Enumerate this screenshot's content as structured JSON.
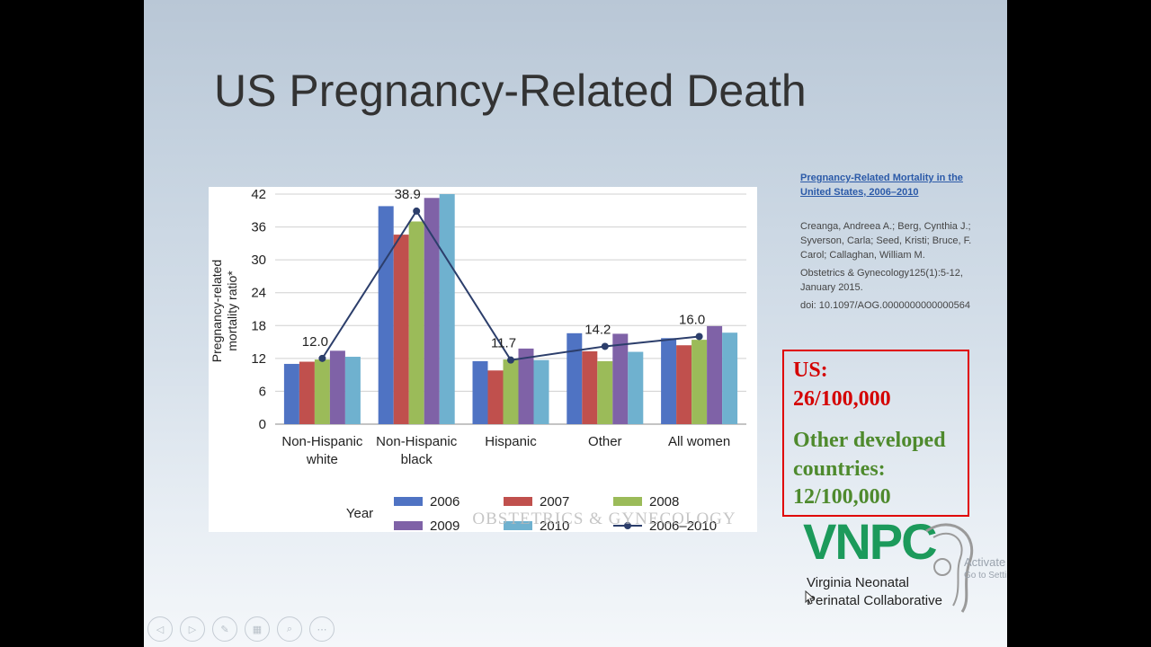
{
  "slide": {
    "title": "US Pregnancy-Related Death"
  },
  "reference": {
    "link_text": "Pregnancy-Related Mortality in the United States, 2006–2010",
    "authors": "Creanga, Andreea A.; Berg, Cynthia J.; Syverson, Carla; Seed, Kristi; Bruce, F. Carol; Callaghan, William M.",
    "journal": "Obstetrics & Gynecology125(1):5-12, January 2015.",
    "doi": "doi: 10.1097/AOG.0000000000000564"
  },
  "stats": {
    "us_label": "US:",
    "us_value": "26/100,000",
    "other_line1": "Other developed",
    "other_line2": "countries:",
    "other_value": "12/100,000",
    "us_color": "#d40000",
    "other_color": "#4e8a2d"
  },
  "logo": {
    "name": "VNPC",
    "line1": "Virginia Neonatal",
    "line2": "Perinatal Collaborative",
    "color": "#1c9a5b"
  },
  "watermark": "OBSTETRICS & GYNECOLOGY",
  "activation": {
    "line1": "Activate Windows",
    "line2": "Go to Settings to activate Windows."
  },
  "nav_buttons": [
    {
      "icon": "arrow-left-icon",
      "glyph": "◁"
    },
    {
      "icon": "arrow-right-icon",
      "glyph": "▷"
    },
    {
      "icon": "pen-icon",
      "glyph": "✎"
    },
    {
      "icon": "slides-icon",
      "glyph": "▦"
    },
    {
      "icon": "zoom-icon",
      "glyph": "⌕"
    },
    {
      "icon": "more-icon",
      "glyph": "⋯"
    }
  ],
  "chart_data": {
    "type": "bar",
    "ylabel": "Pregnancy-related mortality ratio*",
    "ylim": [
      0,
      42
    ],
    "yticks": [
      0,
      6,
      12,
      18,
      24,
      30,
      36,
      42
    ],
    "categories": [
      "Non-Hispanic white",
      "Non-Hispanic black",
      "Hispanic",
      "Other",
      "All women"
    ],
    "category_lines": [
      [
        "Non-Hispanic",
        "white"
      ],
      [
        "Non-Hispanic",
        "black"
      ],
      [
        "Hispanic"
      ],
      [
        "Other"
      ],
      [
        "All women"
      ]
    ],
    "legend_title": "Year",
    "grid": true,
    "series": [
      {
        "name": "2006",
        "color": "#4f73c3",
        "values": [
          11.0,
          39.8,
          11.5,
          16.6,
          15.7
        ]
      },
      {
        "name": "2007",
        "color": "#c0504d",
        "values": [
          11.4,
          34.6,
          9.8,
          13.3,
          14.4
        ]
      },
      {
        "name": "2008",
        "color": "#9bbb59",
        "values": [
          11.8,
          37.0,
          11.8,
          11.5,
          15.4
        ]
      },
      {
        "name": "2009",
        "color": "#7f62a7",
        "values": [
          13.4,
          41.3,
          13.8,
          16.5,
          17.9
        ]
      },
      {
        "name": "2010",
        "color": "#6fb1cf",
        "values": [
          12.3,
          42.0,
          11.7,
          13.2,
          16.7
        ]
      }
    ],
    "line_series": {
      "name": "2006–2010",
      "color": "#2c3e6b",
      "values": [
        12.0,
        38.9,
        11.7,
        14.2,
        16.0
      ]
    },
    "data_labels": [
      "12.0",
      "38.9",
      "11.7",
      "14.2",
      "16.0"
    ]
  }
}
